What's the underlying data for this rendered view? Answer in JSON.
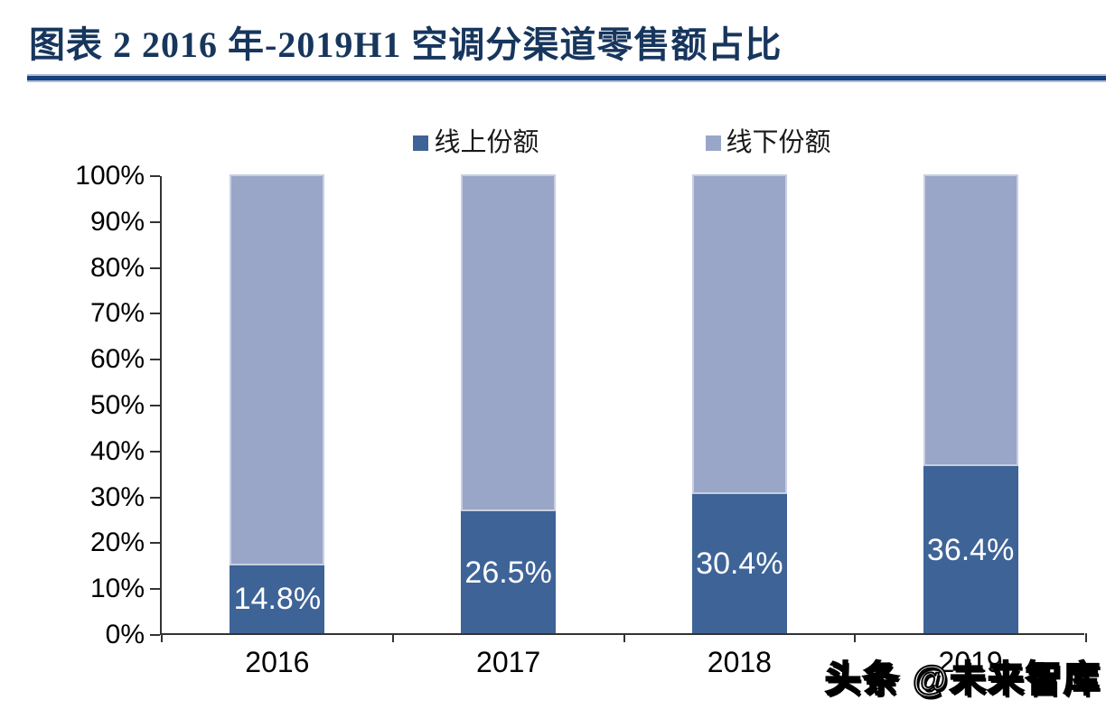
{
  "header": {
    "title": "图表 2  2016 年-2019H1 空调分渠道零售额占比",
    "title_color": "#17365D",
    "rule_color": "#16417F"
  },
  "legend": {
    "items": [
      {
        "label": "线上份额",
        "color": "#3E6397"
      },
      {
        "label": "线下份额",
        "color": "#9AA6C8"
      }
    ]
  },
  "chart_data": {
    "type": "bar",
    "subtype": "stacked-100-percent",
    "title": "图表 2  2016 年-2019H1 空调分渠道零售额占比",
    "categories": [
      "2016",
      "2017",
      "2018",
      "2019"
    ],
    "series": [
      {
        "name": "线上份额",
        "color": "#3E6397",
        "values": [
          14.8,
          26.5,
          30.4,
          36.4
        ]
      },
      {
        "name": "线下份额",
        "color": "#9AA6C8",
        "values": [
          85.2,
          73.5,
          69.6,
          63.6
        ]
      }
    ],
    "data_labels": {
      "series": "线上份额",
      "color": "#FFFFFF",
      "values": [
        "14.8%",
        "26.5%",
        "30.4%",
        "36.4%"
      ]
    },
    "ylim": [
      0,
      100
    ],
    "yticks": [
      "0%",
      "10%",
      "20%",
      "30%",
      "40%",
      "50%",
      "60%",
      "70%",
      "80%",
      "90%",
      "100%"
    ],
    "grid": false,
    "legend_position": "top-center",
    "axis_color": "#333333"
  },
  "watermark": {
    "text": "头条 @未来智库"
  }
}
